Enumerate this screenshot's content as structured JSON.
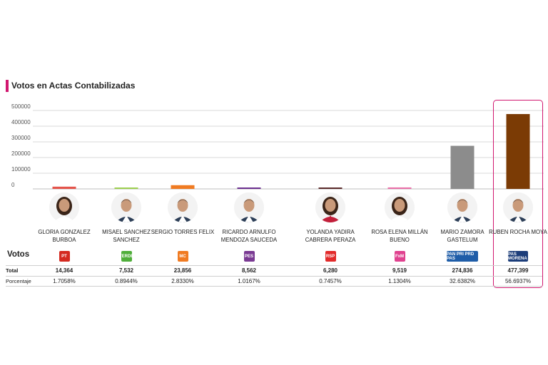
{
  "title": "Votos en Actas Contabilizadas",
  "row_labels": {
    "votos": "Votos",
    "total": "Total",
    "porcentaje": "Porcentaje"
  },
  "colors": {
    "accent": "#d1176f",
    "gridline": "#d9d9d9"
  },
  "chart_data": {
    "type": "bar",
    "ylim": [
      0,
      500000
    ],
    "yticks": [
      "500000",
      "400000",
      "300000",
      "200000",
      "100000",
      "0"
    ],
    "categories": [
      "GLORIA GONZALEZ BURBOA",
      "MISAEL SANCHEZ SANCHEZ",
      "SERGIO TORRES FELIX",
      "RICARDO ARNULFO MENDOZA SAUCEDA",
      "YOLANDA YADIRA CABRERA PERAZA",
      "ROSA ELENA MILLÁN BUENO",
      "MARIO ZAMORA GASTELUM",
      "RUBEN ROCHA MOYA"
    ],
    "values": [
      14364,
      7532,
      23856,
      8562,
      6280,
      9519,
      274836,
      477399
    ],
    "colors": [
      "#e4544b",
      "#9ccf4f",
      "#f07b22",
      "#6b2f8f",
      "#5a2a2a",
      "#e96fa8",
      "#8c8c8c",
      "#7b3b05"
    ],
    "grid": true
  },
  "candidates": [
    {
      "name": "GLORIA GONZALEZ BURBOA",
      "party": "PT",
      "party_color": "#d42a20",
      "total": "14,364",
      "pct": "1.7058%"
    },
    {
      "name": "MISAEL SANCHEZ SANCHEZ",
      "party": "VERDE",
      "party_color": "#4fae3a",
      "total": "7,532",
      "pct": "0.8944%"
    },
    {
      "name": "SERGIO TORRES FELIX",
      "party": "MC",
      "party_color": "#f07b22",
      "total": "23,856",
      "pct": "2.8330%"
    },
    {
      "name": "RICARDO ARNULFO MENDOZA SAUCEDA",
      "party": "PES",
      "party_color": "#7a3a93",
      "total": "8,562",
      "pct": "1.0167%"
    },
    {
      "name": "YOLANDA YADIRA CABRERA PERAZA",
      "party": "RSP",
      "party_color": "#e22b2b",
      "total": "6,280",
      "pct": "0.7457%"
    },
    {
      "name": "ROSA ELENA MILLÁN BUENO",
      "party": "FxM",
      "party_color": "#e0428f",
      "total": "9,519",
      "pct": "1.1304%"
    },
    {
      "name": "MARIO ZAMORA GASTELUM",
      "party": "PAN PRI PRD PAS",
      "party_color": "#1f5da8",
      "total": "274,836",
      "pct": "32.6382%"
    },
    {
      "name": "RUBEN ROCHA MOYA",
      "party": "PAS MORENA",
      "party_color": "#1c3d7a",
      "total": "477,399",
      "pct": "56.6937%"
    }
  ]
}
